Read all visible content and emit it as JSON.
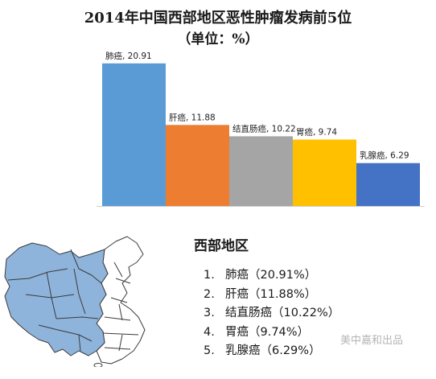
{
  "title": "2014年中国西部地区恶性肿瘤发病前5位",
  "subtitle": "（单位：%）",
  "chart_data": {
    "type": "bar",
    "title": "2014年中国西部地区恶性肿瘤发病前5位",
    "subtitle": "（单位：%）",
    "categories": [
      "肺癌",
      "肝癌",
      "结直肠癌",
      "胃癌",
      "乳腺癌"
    ],
    "values": [
      20.91,
      11.88,
      10.22,
      9.74,
      6.29
    ],
    "data_labels": [
      "肺癌, 20.91",
      "肝癌, 11.88",
      "结直肠癌, 10.22",
      "胃癌, 9.74",
      "乳腺癌, 6.29"
    ],
    "colors": [
      "#5B9BD5",
      "#ED7D31",
      "#A5A5A5",
      "#FFC000",
      "#4472C4"
    ],
    "ylim": [
      0,
      21
    ],
    "grid": false,
    "legend": "none",
    "xlabel": "",
    "ylabel": ""
  },
  "region": {
    "title": "西部地区",
    "items": [
      {
        "num": "1.",
        "text": "肺癌（20.91%）"
      },
      {
        "num": "2.",
        "text": "肝癌（11.88%）"
      },
      {
        "num": "3.",
        "text": "结直肠癌（10.22%）"
      },
      {
        "num": "4.",
        "text": "胃癌（9.74%）"
      },
      {
        "num": "5.",
        "text": "乳腺癌（6.29%）"
      }
    ]
  },
  "map": {
    "highlight_color": "#8FB4DC",
    "other_color": "#FFFFFF",
    "border_color": "#3A3A3A"
  },
  "watermark": "美中嘉和出品"
}
